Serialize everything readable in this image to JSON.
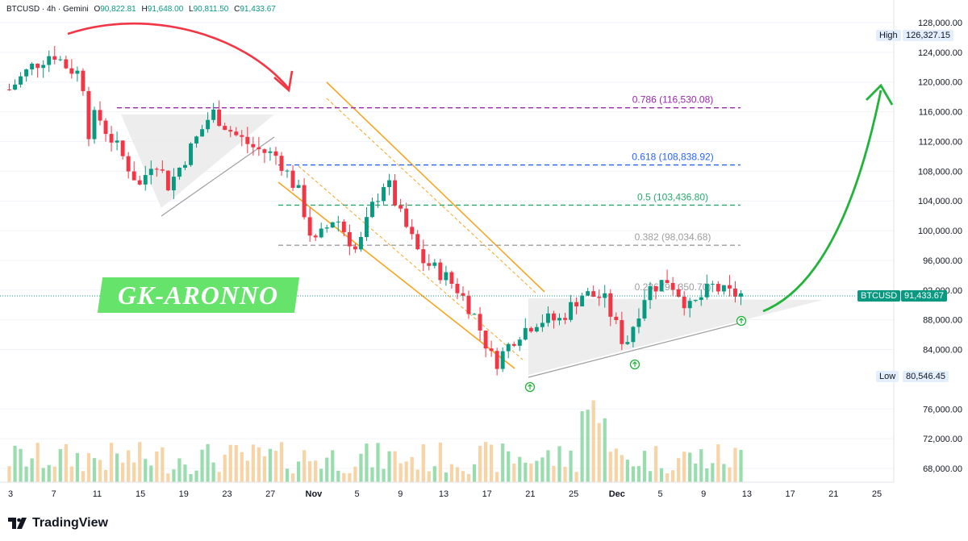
{
  "header": {
    "symbol": "BTCUSD · 4h · Gemini",
    "open_label": "O",
    "open": "90,822.81",
    "high_label": "H",
    "high": "91,648.00",
    "low_label": "L",
    "low": "90,811.50",
    "close_label": "C",
    "close": "91,433.67"
  },
  "watermark_text": "GK-ARONNO",
  "footer": {
    "brand": "TradingView"
  },
  "colors": {
    "up": "#089981",
    "down": "#f23645",
    "vol_up": "#7fd49a",
    "vol_down": "#f5c88f",
    "fib_786": "#9c27b0",
    "fib_618": "#2962ff",
    "fib_5": "#26a96c",
    "fib_382": "#9e9e9e",
    "channel": "#f5a623",
    "arrow_red": "#f23645",
    "arrow_green": "#22b33a"
  },
  "chart_data": {
    "type": "candlestick",
    "y_axis": {
      "ticks": [
        "128,000.00",
        "124,000.00",
        "120,000.00",
        "116,000.00",
        "112,000.00",
        "108,000.00",
        "104,000.00",
        "100,000.00",
        "96,000.00",
        "92,000.00",
        "88,000.00",
        "84,000.00",
        "76,000.00",
        "72,000.00",
        "68,000.00"
      ],
      "tick_values": [
        128000,
        124000,
        120000,
        116000,
        112000,
        108000,
        104000,
        100000,
        96000,
        92000,
        88000,
        84000,
        76000,
        72000,
        68000
      ]
    },
    "x_axis": {
      "ticks": [
        "3",
        "7",
        "11",
        "15",
        "19",
        "23",
        "27",
        "Nov",
        "5",
        "9",
        "13",
        "17",
        "21",
        "25",
        "Dec",
        "5",
        "9",
        "13",
        "17",
        "21",
        "25"
      ],
      "bold": [
        "Nov",
        "Dec"
      ]
    },
    "markers": {
      "high": {
        "label": "High",
        "value": "126,327.15",
        "price": 126327.15
      },
      "low": {
        "label": "Low",
        "value": "80,546.45",
        "price": 80546.45
      },
      "last": {
        "label": "BTCUSD",
        "value": "91,433.67",
        "price": 91433.67
      }
    },
    "fib_levels": [
      {
        "ratio": "0.786",
        "label": "0.786 (116,530.08)",
        "price": 116530.08
      },
      {
        "ratio": "0.618",
        "label": "0.618 (108,838.92)",
        "price": 108838.92
      },
      {
        "ratio": "0.5",
        "label": "0.5 (103,436.80)",
        "price": 103436.8
      },
      {
        "ratio": "0.382",
        "label": "0.382 (98,034.68)",
        "price": 98034.68
      },
      {
        "ratio": "0.236",
        "label": "0.236 (91,350.70)",
        "price": 91350.7
      }
    ],
    "price_path": [
      [
        0,
        119000
      ],
      [
        3,
        122000
      ],
      [
        6,
        124000
      ],
      [
        8,
        122000
      ],
      [
        10,
        121000
      ],
      [
        11,
        113000
      ],
      [
        12,
        116000
      ],
      [
        13,
        114000
      ],
      [
        15,
        111000
      ],
      [
        18,
        106000
      ],
      [
        20,
        110000
      ],
      [
        22,
        106000
      ],
      [
        25,
        111000
      ],
      [
        28,
        116000
      ],
      [
        31,
        113000
      ],
      [
        34,
        111000
      ],
      [
        37,
        110000
      ],
      [
        40,
        105000
      ],
      [
        42,
        98000
      ],
      [
        45,
        102000
      ],
      [
        48,
        97000
      ],
      [
        50,
        103000
      ],
      [
        52,
        107000
      ],
      [
        54,
        102000
      ],
      [
        57,
        96000
      ],
      [
        60,
        94000
      ],
      [
        62,
        92000
      ],
      [
        64,
        89000
      ],
      [
        67,
        82000
      ],
      [
        70,
        86000
      ],
      [
        73,
        88000
      ],
      [
        76,
        88000
      ],
      [
        79,
        91500
      ],
      [
        82,
        91000
      ],
      [
        85,
        84500
      ],
      [
        88,
        92000
      ],
      [
        91,
        93500
      ],
      [
        94,
        89500
      ],
      [
        97,
        92500
      ],
      [
        99,
        91500
      ],
      [
        101,
        91433
      ]
    ]
  }
}
